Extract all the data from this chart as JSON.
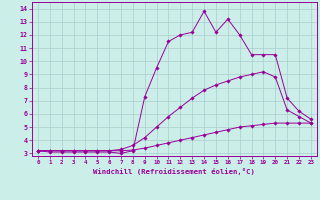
{
  "xlabel": "Windchill (Refroidissement éolien,°C)",
  "background_color": "#cceee8",
  "grid_color": "#aacccc",
  "line_color": "#990099",
  "xlim": [
    -0.5,
    23.5
  ],
  "ylim": [
    2.8,
    14.5
  ],
  "yticks": [
    3,
    4,
    5,
    6,
    7,
    8,
    9,
    10,
    11,
    12,
    13,
    14
  ],
  "xticks": [
    0,
    1,
    2,
    3,
    4,
    5,
    6,
    7,
    8,
    9,
    10,
    11,
    12,
    13,
    14,
    15,
    16,
    17,
    18,
    19,
    20,
    21,
    22,
    23
  ],
  "line1_x": [
    0,
    1,
    2,
    3,
    4,
    5,
    6,
    7,
    8,
    9,
    10,
    11,
    12,
    13,
    14,
    15,
    16,
    17,
    18,
    19,
    20,
    21,
    22,
    23
  ],
  "line1_y": [
    3.2,
    3.2,
    3.2,
    3.2,
    3.2,
    3.2,
    3.2,
    3.2,
    3.25,
    3.4,
    3.6,
    3.8,
    4.0,
    4.2,
    4.4,
    4.6,
    4.8,
    5.0,
    5.1,
    5.2,
    5.3,
    5.3,
    5.3,
    5.3
  ],
  "line2_x": [
    0,
    1,
    2,
    3,
    4,
    5,
    6,
    7,
    8,
    9,
    10,
    11,
    12,
    13,
    14,
    15,
    16,
    17,
    18,
    19,
    20,
    21,
    22,
    23
  ],
  "line2_y": [
    3.2,
    3.2,
    3.2,
    3.2,
    3.2,
    3.2,
    3.2,
    3.3,
    3.6,
    4.2,
    5.0,
    5.8,
    6.5,
    7.2,
    7.8,
    8.2,
    8.5,
    8.8,
    9.0,
    9.2,
    8.8,
    6.3,
    5.8,
    5.3
  ],
  "line3_x": [
    0,
    1,
    2,
    3,
    4,
    5,
    6,
    7,
    8,
    9,
    10,
    11,
    12,
    13,
    14,
    15,
    16,
    17,
    18,
    19,
    20,
    21,
    22,
    23
  ],
  "line3_y": [
    3.2,
    3.1,
    3.1,
    3.1,
    3.1,
    3.1,
    3.1,
    3.0,
    3.2,
    7.3,
    9.5,
    11.5,
    12.0,
    12.2,
    13.8,
    12.2,
    13.2,
    12.0,
    10.5,
    10.5,
    10.5,
    7.2,
    6.2,
    5.6
  ]
}
